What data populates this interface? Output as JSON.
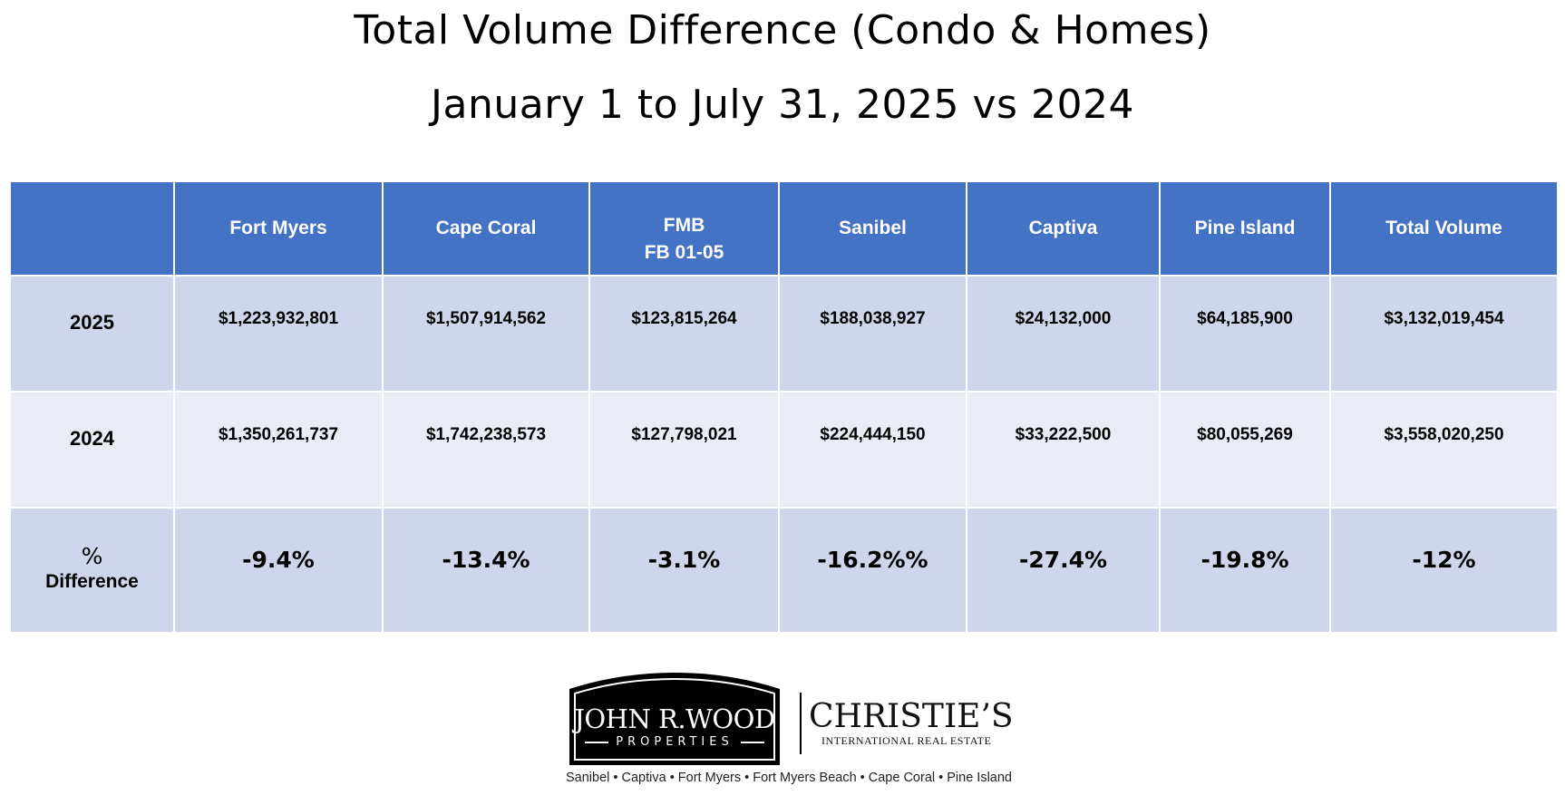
{
  "title": "Total Volume Difference (Condo & Homes)",
  "subtitle": "January 1 to July 31, 2025 vs 2024",
  "table": {
    "headers": [
      {
        "line1": "",
        "line2": ""
      },
      {
        "line1": "Fort Myers",
        "line2": ""
      },
      {
        "line1": "Cape Coral",
        "line2": ""
      },
      {
        "line1": "FMB",
        "line2": "FB 01-05"
      },
      {
        "line1": "Sanibel",
        "line2": ""
      },
      {
        "line1": "Captiva",
        "line2": ""
      },
      {
        "line1": "Pine Island",
        "line2": ""
      },
      {
        "line1": "Total Volume",
        "line2": ""
      }
    ],
    "rows": [
      {
        "label": "2025",
        "label2": "",
        "values": [
          "$1,223,932,801",
          "$1,507,914,562",
          "$123,815,264",
          "$188,038,927",
          "$24,132,000",
          "$64,185,900",
          "$3,132,019,454"
        ]
      },
      {
        "label": "2024",
        "label2": "",
        "values": [
          "$1,350,261,737",
          "$1,742,238,573",
          "$127,798,021",
          "$224,444,150",
          "$33,222,500",
          "$80,055,269",
          "$3,558,020,250"
        ]
      },
      {
        "label": "%",
        "label2": "Difference",
        "values": [
          "-9.4%",
          "-13.4%",
          "-3.1%",
          "-16.2%%",
          "-27.4%",
          "-19.8%",
          "-12%"
        ]
      }
    ]
  },
  "logo": {
    "badge_name": "JOHN R.WOOD",
    "badge_sub": "PROPERTIES",
    "partner_name": "CHRISTIE’S",
    "partner_sub": "INTERNATIONAL REAL ESTATE",
    "towns": "Sanibel • Captiva • Fort Myers • Fort Myers Beach • Cape Coral • Pine Island"
  },
  "colors": {
    "header_bg": "#4472c4",
    "row_dark": "#cfd5ea",
    "row_light": "#e9ebf5"
  }
}
